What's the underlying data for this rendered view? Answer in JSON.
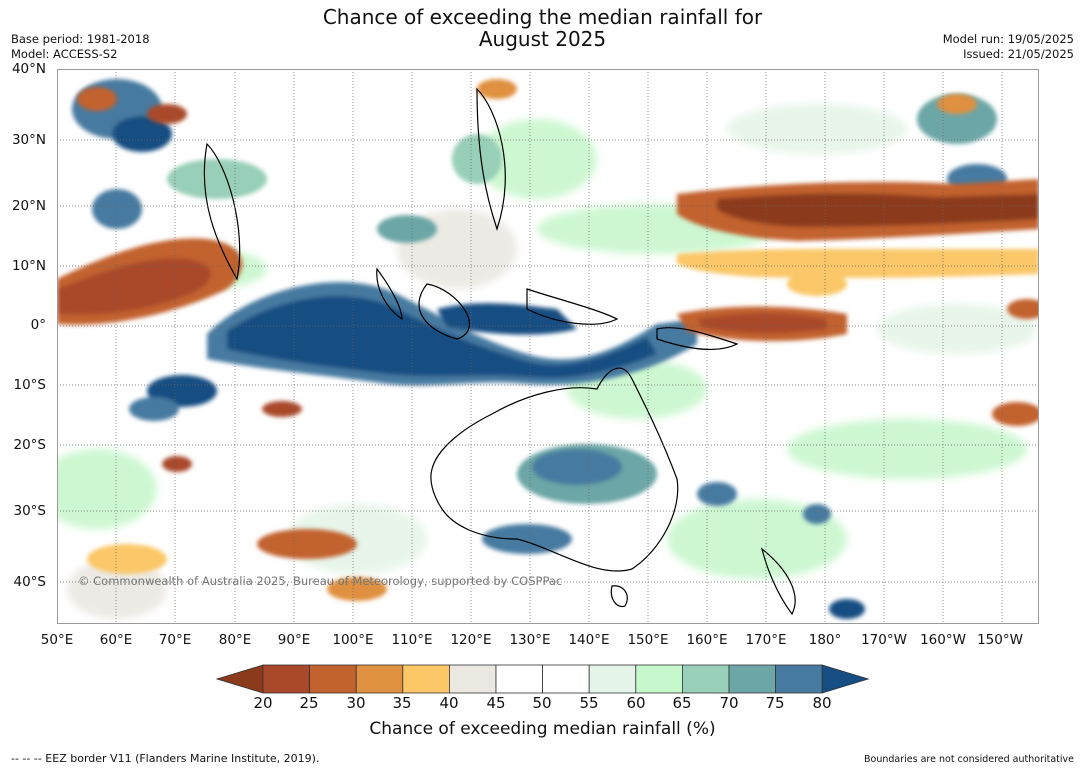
{
  "header": {
    "title_line1": "Chance of exceeding the median rainfall for",
    "title_line2": "August 2025",
    "base_period": "Base period: 1981-2018",
    "model": "Model: ACCESS-S2",
    "model_run": "Model run: 19/05/2025",
    "issued": "Issued: 21/05/2025"
  },
  "map": {
    "copyright": "© Commonwealth of Australia 2025, Bureau of Meteorology, supported by COSPPac",
    "lat_labels": [
      "40°N",
      "30°N",
      "20°N",
      "10°N",
      "0°",
      "10°S",
      "20°S",
      "30°S",
      "40°S"
    ],
    "lon_labels": [
      "50°E",
      "60°E",
      "70°E",
      "80°E",
      "90°E",
      "100°E",
      "110°E",
      "120°E",
      "130°E",
      "140°E",
      "150°E",
      "160°E",
      "170°E",
      "180°",
      "170°W",
      "160°W",
      "150°W"
    ]
  },
  "colorbar": {
    "ticks": [
      "20",
      "25",
      "30",
      "35",
      "40",
      "45",
      "50",
      "55",
      "60",
      "65",
      "70",
      "75",
      "80"
    ],
    "colors": [
      "#8b3a1c",
      "#a9482a",
      "#c2622f",
      "#df9040",
      "#fbc767",
      "#ebe8e2",
      "#ffffff",
      "#ffffff",
      "#e5f4e8",
      "#c7f7cc",
      "#98cfb8",
      "#6ca6a6",
      "#467aa0",
      "#164d82"
    ],
    "title": "Chance of exceeding median rainfall (%)"
  },
  "footer": {
    "eez_note": "--  --  -- EEZ border V11 (Flanders Marine Institute, 2019).",
    "boundaries_note": "Boundaries are not considered authoritative"
  }
}
